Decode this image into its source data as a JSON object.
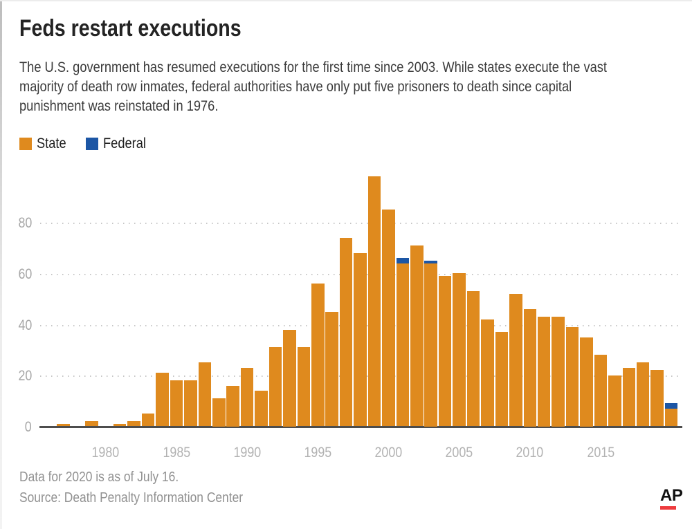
{
  "header": {
    "title": "Feds restart executions",
    "subtitle_lines": [
      "The U.S. government has resumed executions for the first time since 2003. While states execute the vast",
      "majority of death row inmates, federal authorities have only put five prisoners to death since capital",
      "punishment was reinstated in 1976."
    ]
  },
  "legend": {
    "items": [
      {
        "label": "State",
        "color": "#DF8A1E"
      },
      {
        "label": "Federal",
        "color": "#1C56A5"
      }
    ]
  },
  "footer": {
    "note": "Data for 2020 is as of July 16.",
    "source": "Source: Death Penalty Information Center",
    "ap_logo_text": "AP"
  },
  "colors": {
    "state_orange": "#DF8A1E",
    "federal_blue": "#1C56A5",
    "ap_red": "#EE3B3E",
    "axis_line": "#4D4D4D",
    "gridline_dots": "#C6C6C6",
    "tick_label_gray": "#ABABAB"
  },
  "chart_data": {
    "type": "bar",
    "stacked": true,
    "title": "U.S. executions per year, state vs. federal",
    "xlabel": "",
    "ylabel": "",
    "x": [
      1977,
      1978,
      1979,
      1980,
      1981,
      1982,
      1983,
      1984,
      1985,
      1986,
      1987,
      1988,
      1989,
      1990,
      1991,
      1992,
      1993,
      1994,
      1995,
      1996,
      1997,
      1998,
      1999,
      2000,
      2001,
      2002,
      2003,
      2004,
      2005,
      2006,
      2007,
      2008,
      2009,
      2010,
      2011,
      2012,
      2013,
      2014,
      2015,
      2016,
      2017,
      2018,
      2019,
      2020
    ],
    "series": [
      {
        "name": "State",
        "color": "#DF8A1E",
        "values": [
          1,
          0,
          2,
          0,
          1,
          2,
          5,
          21,
          18,
          18,
          25,
          11,
          16,
          23,
          14,
          31,
          38,
          31,
          56,
          45,
          74,
          68,
          98,
          85,
          64,
          71,
          64,
          59,
          60,
          53,
          42,
          37,
          52,
          46,
          43,
          43,
          39,
          35,
          28,
          20,
          23,
          25,
          22,
          7
        ]
      },
      {
        "name": "Federal",
        "color": "#1C56A5",
        "values": [
          0,
          0,
          0,
          0,
          0,
          0,
          0,
          0,
          0,
          0,
          0,
          0,
          0,
          0,
          0,
          0,
          0,
          0,
          0,
          0,
          0,
          0,
          0,
          0,
          2,
          0,
          1,
          0,
          0,
          0,
          0,
          0,
          0,
          0,
          0,
          0,
          0,
          0,
          0,
          0,
          0,
          0,
          0,
          2
        ]
      }
    ],
    "ylim": [
      0,
      100
    ],
    "yticks": [
      0,
      20,
      40,
      60,
      80
    ],
    "xticks": [
      1980,
      1985,
      1990,
      1995,
      2000,
      2005,
      2010,
      2015
    ],
    "grid": "horizontal dotted",
    "legend_position": "top-left"
  }
}
